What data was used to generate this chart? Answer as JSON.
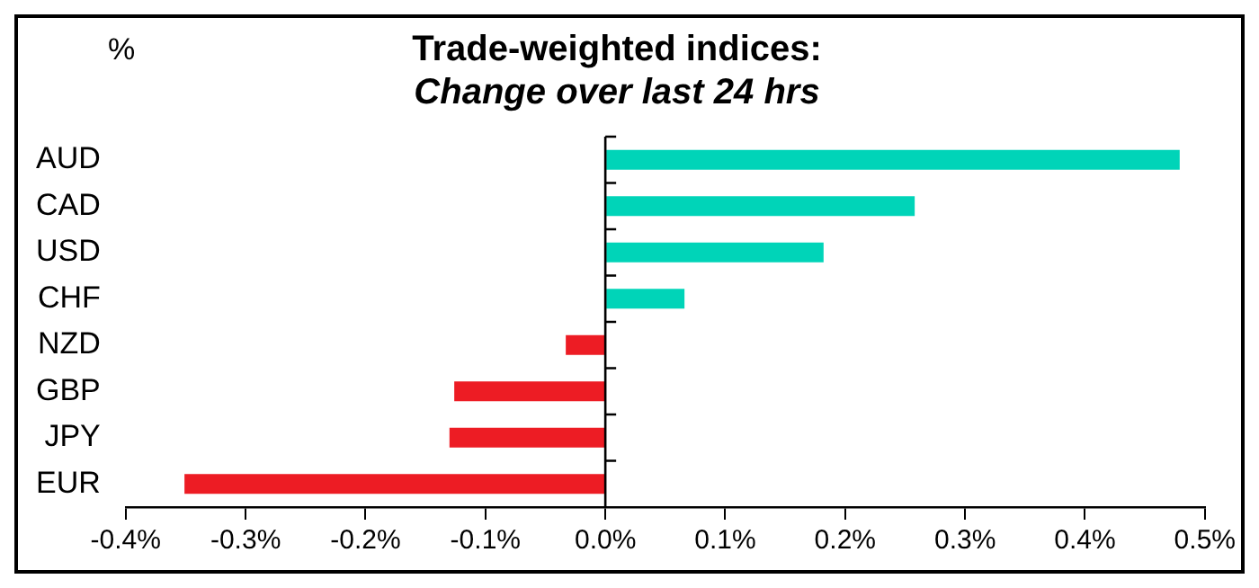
{
  "chart_data": {
    "type": "bar",
    "orientation": "horizontal",
    "title": "Trade-weighted indices:",
    "subtitle": "Change over last 24 hrs",
    "annotations": [
      "%"
    ],
    "categories": [
      "AUD",
      "CAD",
      "USD",
      "CHF",
      "NZD",
      "GBP",
      "JPY",
      "EUR"
    ],
    "values": [
      0.479,
      0.258,
      0.182,
      0.066,
      -0.033,
      -0.126,
      -0.13,
      -0.351
    ],
    "colors": [
      "#00d4b8",
      "#00d4b8",
      "#00d4b8",
      "#00d4b8",
      "#ed1c24",
      "#ed1c24",
      "#ed1c24",
      "#ed1c24"
    ],
    "xlim": [
      -0.4,
      0.5
    ],
    "xticks": [
      {
        "value": -0.4,
        "label": "-0.4%"
      },
      {
        "value": -0.3,
        "label": "-0.3%"
      },
      {
        "value": -0.2,
        "label": "-0.2%"
      },
      {
        "value": -0.1,
        "label": "-0.1%"
      },
      {
        "value": 0,
        "label": "0.0%"
      },
      {
        "value": 0.1,
        "label": "0.1%"
      },
      {
        "value": 0.2,
        "label": "0.2%"
      },
      {
        "value": 0.3,
        "label": "0.3%"
      },
      {
        "value": 0.4,
        "label": "0.4%"
      },
      {
        "value": 0.5,
        "label": "0.5%"
      }
    ],
    "legend": false
  }
}
